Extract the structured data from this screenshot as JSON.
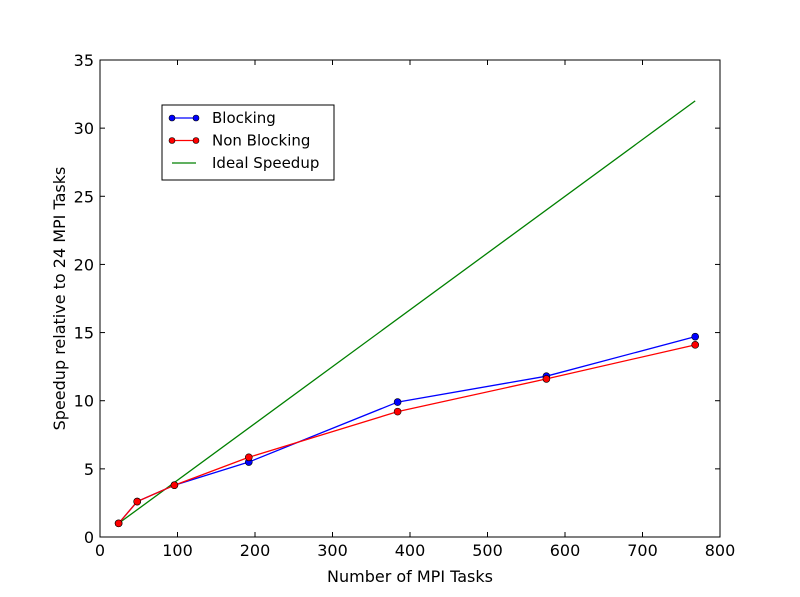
{
  "chart_data": {
    "type": "line",
    "title": "",
    "xlabel": "Number of MPI Tasks",
    "ylabel": "Speedup relative to 24 MPI Tasks",
    "xlim": [
      0,
      800
    ],
    "ylim": [
      0,
      35
    ],
    "xticks": [
      0,
      100,
      200,
      300,
      400,
      500,
      600,
      700,
      800
    ],
    "yticks": [
      0,
      5,
      10,
      15,
      20,
      25,
      30,
      35
    ],
    "grid": false,
    "legend_position": "upper-left",
    "series": [
      {
        "name": "Blocking",
        "color": "#0000ff",
        "marker": "circle",
        "x": [
          24,
          48,
          96,
          192,
          384,
          576,
          768
        ],
        "y": [
          1.0,
          2.6,
          3.8,
          5.5,
          9.9,
          11.8,
          14.7
        ]
      },
      {
        "name": "Non Blocking",
        "color": "#ff0000",
        "marker": "circle",
        "x": [
          24,
          48,
          96,
          192,
          384,
          576,
          768
        ],
        "y": [
          1.0,
          2.6,
          3.8,
          5.85,
          9.2,
          11.6,
          14.1
        ]
      },
      {
        "name": "Ideal Speedup",
        "color": "#008000",
        "marker": "none",
        "x": [
          24,
          768
        ],
        "y": [
          1,
          32
        ]
      }
    ]
  }
}
